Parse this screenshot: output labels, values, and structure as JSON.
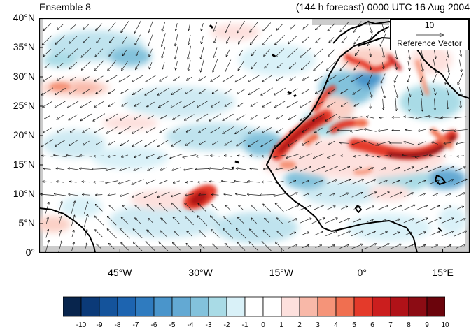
{
  "title_left": "Ensemble 8",
  "title_right": "(144 h forecast) 0000 UTC 16 Aug 2004",
  "reference": {
    "magnitude": "10",
    "label": "Reference Vector"
  },
  "lat_labels": [
    "40°N",
    "35°N",
    "30°N",
    "25°N",
    "20°N",
    "15°N",
    "10°N",
    "5°N",
    "0°"
  ],
  "lon_labels": [
    "45°W",
    "30°W",
    "15°W",
    "0°",
    "15°E"
  ],
  "colorbar": {
    "labels": [
      "-10",
      "-9",
      "-8",
      "-7",
      "-6",
      "-5",
      "-4",
      "-3",
      "-2",
      "-1",
      "0",
      "1",
      "2",
      "3",
      "4",
      "5",
      "6",
      "7",
      "8",
      "9",
      "10"
    ],
    "colors": [
      "#08254d",
      "#0b3a78",
      "#14539b",
      "#1d64b0",
      "#2f7bbf",
      "#4a95cb",
      "#63a9d3",
      "#83c2dc",
      "#a9dbe6",
      "#d9f1f8",
      "#ffffff",
      "#ffffff",
      "#fde0dd",
      "#f8b8a8",
      "#f59479",
      "#f06f50",
      "#e43a2a",
      "#cb1e1e",
      "#b01218",
      "#8c0c14",
      "#6b040c"
    ]
  },
  "map": {
    "extent": {
      "lon_min": -60,
      "lon_max": 20,
      "lat_min": 0,
      "lat_max": 40
    },
    "ocean_color": "#ffffff",
    "missing_color": "#cccccc",
    "coastline_color": "#000000"
  }
}
